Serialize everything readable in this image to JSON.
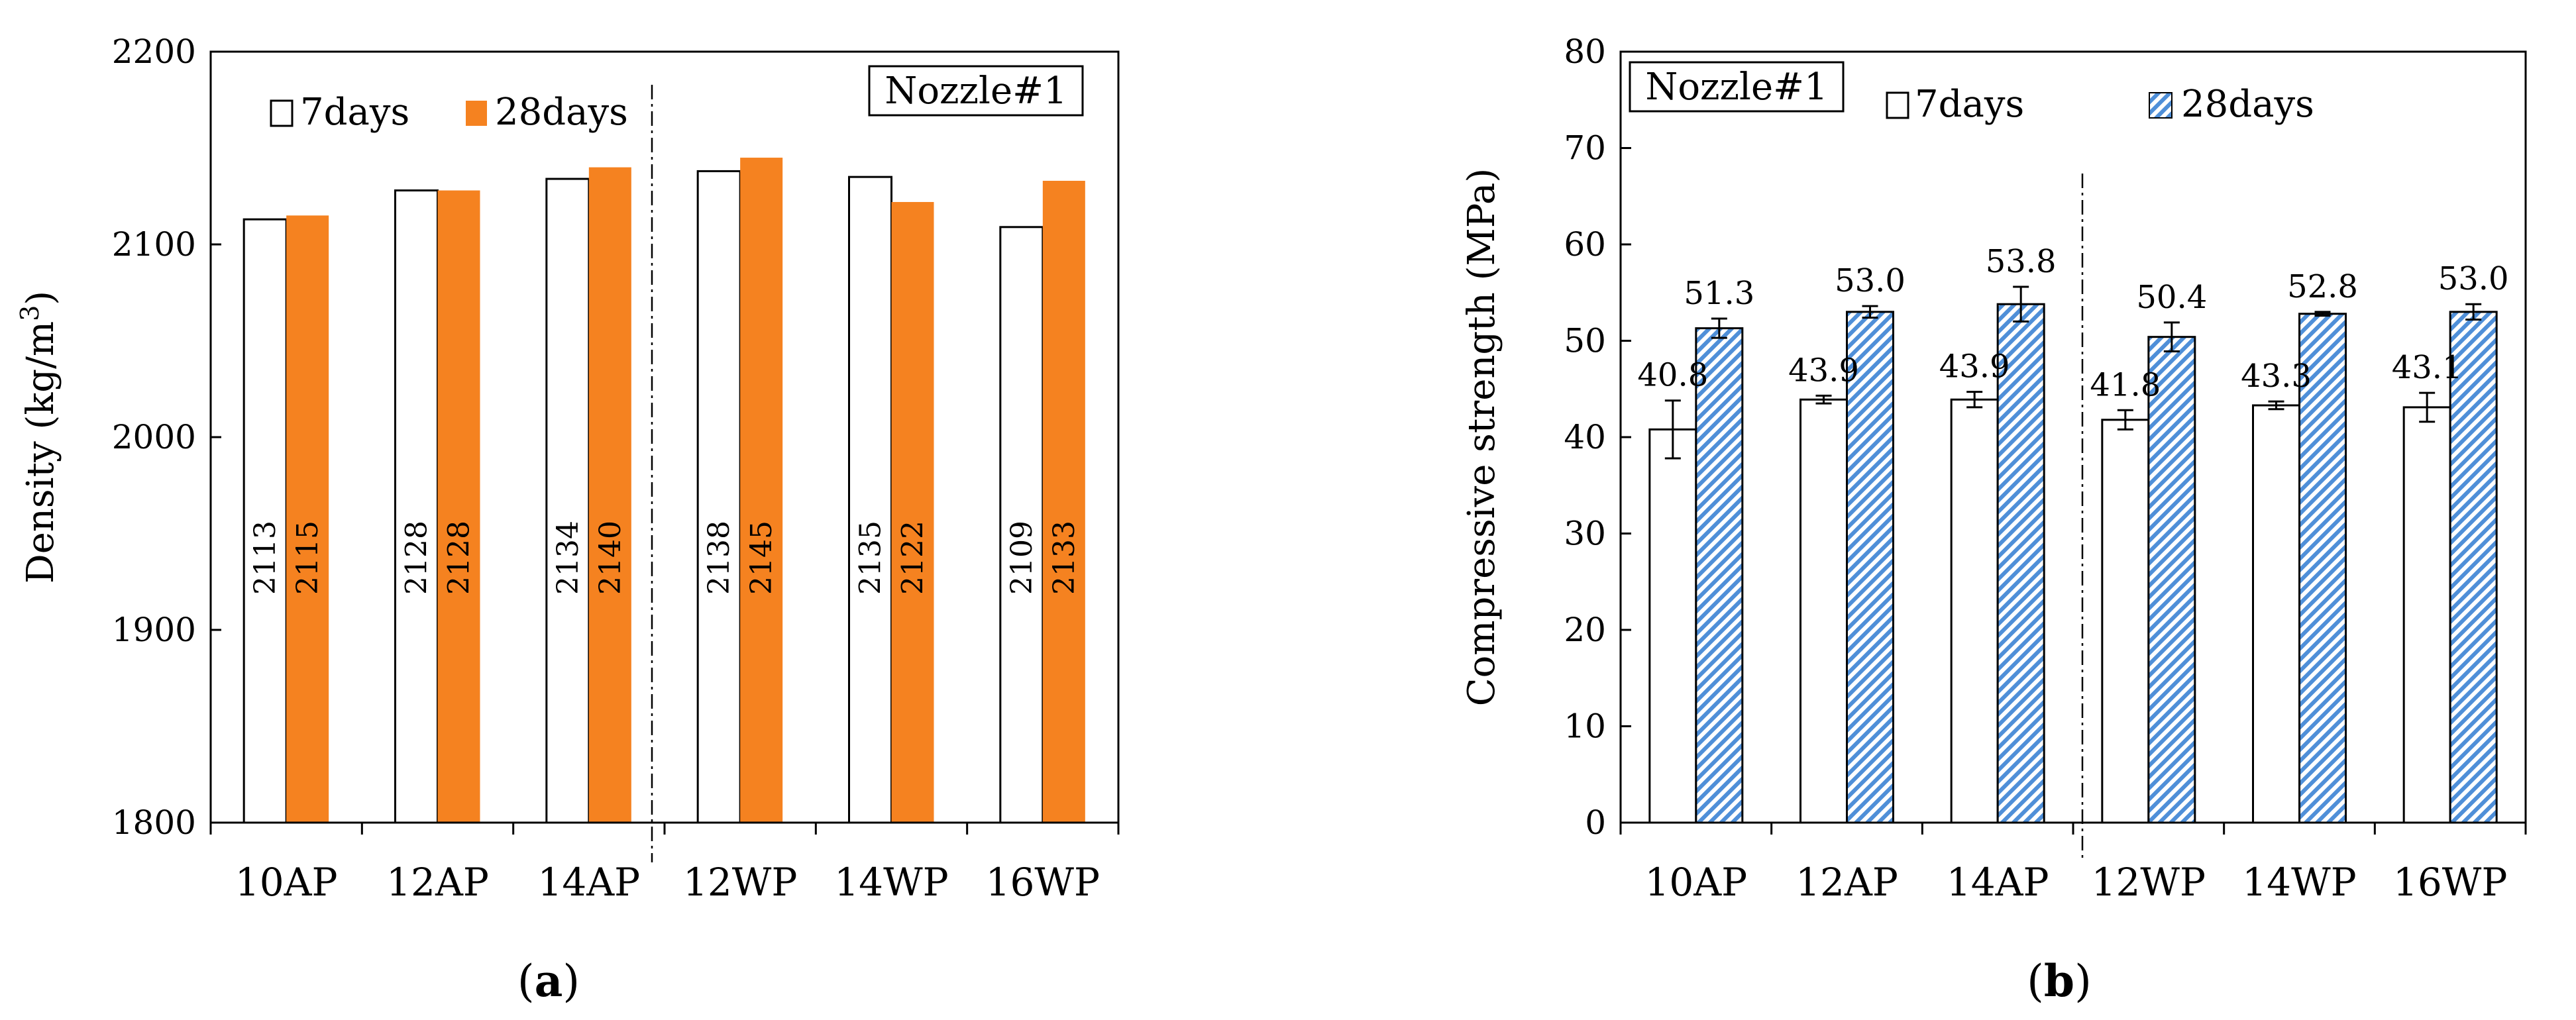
{
  "panels": {
    "a": {
      "letter": "a"
    },
    "b": {
      "letter": "b"
    }
  },
  "colors": {
    "orange": "#F58220",
    "blue": "#4F8FD8",
    "black": "#000000",
    "white": "#FFFFFF"
  },
  "chart_data": [
    {
      "type": "bar",
      "panel": "(a)",
      "title": "",
      "box_label": "Nozzle#1",
      "xlabel": "",
      "ylabel": "Density (kg/m³)",
      "ylabel_parts": {
        "main": "Density (kg/m",
        "sup": "3",
        "end": ")"
      },
      "ylim": [
        1800,
        2200
      ],
      "yticks": [
        "1800",
        "1900",
        "2000",
        "2100",
        "2200"
      ],
      "categories": [
        "10AP",
        "12AP",
        "14AP",
        "12WP",
        "14WP",
        "16WP"
      ],
      "group_divider_after_index": 2,
      "legend_position": "top-left",
      "series": [
        {
          "name": "7days",
          "style": "white",
          "values": [
            2113,
            2128,
            2134,
            2138,
            2135,
            2109
          ],
          "labels": [
            "2113",
            "2128",
            "2134",
            "2138",
            "2135",
            "2109"
          ]
        },
        {
          "name": "28days",
          "style": "orange",
          "values": [
            2115,
            2128,
            2140,
            2145,
            2122,
            2133
          ],
          "labels": [
            "2115",
            "2128",
            "2140",
            "2145",
            "2122",
            "2133"
          ]
        }
      ]
    },
    {
      "type": "bar",
      "panel": "(b)",
      "title": "",
      "box_label": "Nozzle#1",
      "xlabel": "",
      "ylabel": "Compressive strength (MPa)",
      "ylim": [
        0,
        80
      ],
      "yticks": [
        "0",
        "10",
        "20",
        "30",
        "40",
        "50",
        "60",
        "70",
        "80"
      ],
      "categories": [
        "10AP",
        "12AP",
        "14AP",
        "12WP",
        "14WP",
        "16WP"
      ],
      "group_divider_after_index": 2,
      "legend_position": "top",
      "series": [
        {
          "name": "7days",
          "style": "white",
          "values": [
            40.8,
            43.9,
            43.9,
            41.8,
            43.3,
            43.1
          ],
          "errors": [
            3.0,
            0.4,
            0.8,
            1.0,
            0.4,
            1.5
          ],
          "labels": [
            "40.8",
            "43.9",
            "43.9",
            "41.8",
            "43.3",
            "43.1"
          ]
        },
        {
          "name": "28days",
          "style": "blue-hatched",
          "values": [
            51.3,
            53.0,
            53.8,
            50.4,
            52.8,
            53.0
          ],
          "errors": [
            1.0,
            0.6,
            1.8,
            1.5,
            0.2,
            0.8
          ],
          "labels": [
            "51.3",
            "53.0",
            "53.8",
            "50.4",
            "52.8",
            "53.0"
          ]
        }
      ]
    }
  ]
}
